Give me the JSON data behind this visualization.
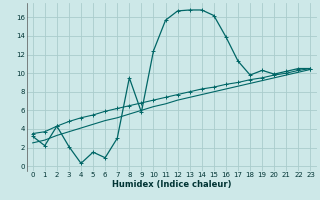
{
  "xlabel": "Humidex (Indice chaleur)",
  "bg_color": "#cde8e8",
  "grid_color": "#aacccc",
  "line_color": "#006666",
  "xlim": [
    -0.5,
    23.5
  ],
  "ylim": [
    -0.5,
    17.5
  ],
  "xticks": [
    0,
    1,
    2,
    3,
    4,
    5,
    6,
    7,
    8,
    9,
    10,
    11,
    12,
    13,
    14,
    15,
    16,
    17,
    18,
    19,
    20,
    21,
    22,
    23
  ],
  "yticks": [
    0,
    2,
    4,
    6,
    8,
    10,
    12,
    14,
    16
  ],
  "curve1_x": [
    0,
    1,
    2,
    3,
    4,
    5,
    6,
    7,
    8,
    9,
    10,
    11,
    12,
    13,
    14,
    15,
    16,
    17,
    18,
    19,
    20,
    21,
    22,
    23
  ],
  "curve1_y": [
    3.2,
    2.2,
    4.3,
    2.1,
    0.3,
    1.5,
    0.9,
    3.0,
    9.5,
    5.8,
    12.4,
    15.7,
    16.7,
    16.8,
    16.8,
    16.2,
    13.9,
    11.3,
    9.8,
    10.3,
    9.9,
    10.2,
    10.5,
    10.5
  ],
  "curve2_x": [
    0,
    1,
    2,
    3,
    4,
    5,
    6,
    7,
    8,
    9,
    10,
    11,
    12,
    13,
    14,
    15,
    16,
    17,
    18,
    19,
    20,
    21,
    22,
    23
  ],
  "curve2_y": [
    3.5,
    3.7,
    4.3,
    4.8,
    5.2,
    5.5,
    5.9,
    6.2,
    6.5,
    6.8,
    7.1,
    7.4,
    7.7,
    8.0,
    8.3,
    8.5,
    8.8,
    9.0,
    9.3,
    9.5,
    9.8,
    10.0,
    10.3,
    10.5
  ],
  "curve3_x": [
    0,
    1,
    2,
    3,
    4,
    5,
    6,
    7,
    8,
    9,
    10,
    11,
    12,
    13,
    14,
    15,
    16,
    17,
    18,
    19,
    20,
    21,
    22,
    23
  ],
  "curve3_y": [
    2.5,
    2.8,
    3.3,
    3.7,
    4.1,
    4.5,
    4.9,
    5.2,
    5.6,
    6.0,
    6.4,
    6.7,
    7.1,
    7.4,
    7.7,
    8.0,
    8.3,
    8.6,
    8.9,
    9.2,
    9.5,
    9.8,
    10.1,
    10.4
  ],
  "xlabel_fontsize": 6,
  "tick_fontsize": 5,
  "linewidth1": 0.9,
  "linewidth2": 0.8,
  "linewidth3": 0.8,
  "markersize": 2.5
}
